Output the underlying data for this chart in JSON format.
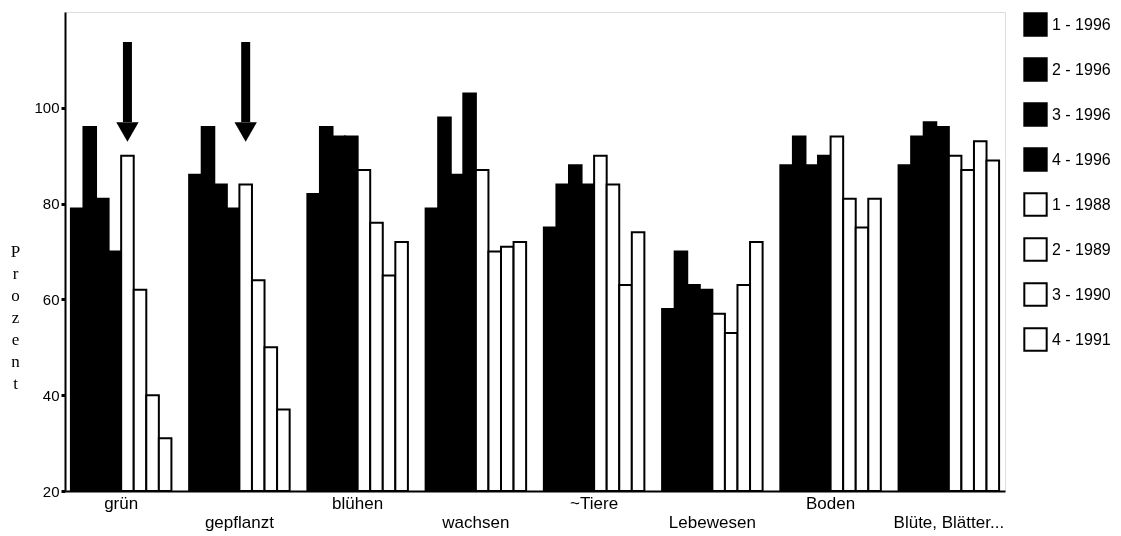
{
  "chart_data": {
    "type": "bar",
    "ylabel": "Prozent",
    "categories": [
      "grün",
      "gepflanzt",
      "blühen",
      "wachsen",
      "~Tiere",
      "Lebewesen",
      "Boden",
      "Blüte, Blätter..."
    ],
    "series": [
      {
        "name": "1 - 1996",
        "color": "#000000",
        "values": [
          79,
          86,
          82,
          79,
          75,
          58,
          88,
          88
        ]
      },
      {
        "name": "2 - 1996",
        "color": "#000000",
        "values": [
          96,
          96,
          96,
          98,
          84,
          70,
          94,
          94
        ]
      },
      {
        "name": "3 - 1996",
        "color": "#000000",
        "values": [
          81,
          84,
          94,
          86,
          88,
          63,
          88,
          97
        ]
      },
      {
        "name": "4 - 1996",
        "color": "#000000",
        "values": [
          70,
          79,
          94,
          103,
          84,
          62,
          90,
          96
        ]
      },
      {
        "name": "1 - 1988",
        "color": "#ffffff",
        "values": [
          90,
          84,
          87,
          87,
          90,
          57,
          94,
          90
        ]
      },
      {
        "name": "2 - 1989",
        "color": "#ffffff",
        "values": [
          62,
          64,
          76,
          70,
          84,
          53,
          81,
          87
        ]
      },
      {
        "name": "3 - 1990",
        "color": "#ffffff",
        "values": [
          40,
          50,
          65,
          71,
          63,
          63,
          75,
          93
        ]
      },
      {
        "name": "4 - 1991",
        "color": "#ffffff",
        "values": [
          31,
          37,
          72,
          72,
          74,
          72,
          81,
          89
        ]
      }
    ],
    "ylim": [
      20,
      120
    ],
    "yticks": [
      20,
      40,
      60,
      80,
      100
    ],
    "grid": false,
    "legend": "right"
  }
}
